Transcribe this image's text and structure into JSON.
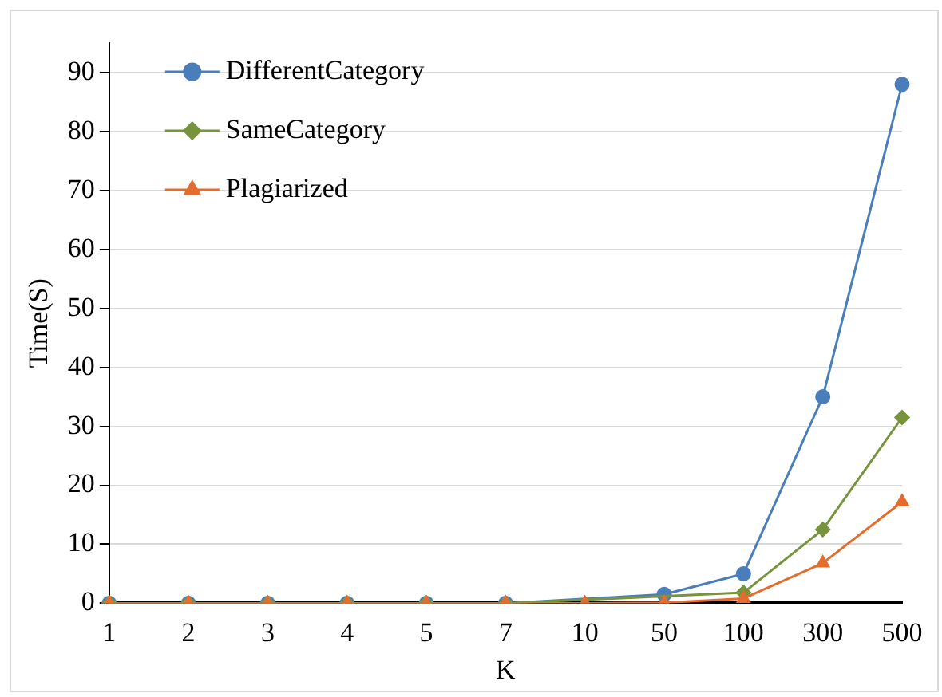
{
  "chart_data": {
    "type": "line",
    "xlabel": "K",
    "ylabel": "Time(S)",
    "categories": [
      "1",
      "2",
      "3",
      "4",
      "5",
      "7",
      "10",
      "50",
      "100",
      "300",
      "500"
    ],
    "series": [
      {
        "name": "DifferentCategory",
        "color": "#4a7ebb",
        "marker": "circle",
        "values": [
          0,
          0,
          0,
          0,
          0,
          0,
          null,
          1.5,
          5,
          35,
          88
        ]
      },
      {
        "name": "SameCategory",
        "color": "#77933c",
        "marker": "diamond",
        "values": [
          0,
          0,
          0,
          0,
          0,
          0,
          null,
          null,
          1.8,
          12.5,
          31.5
        ]
      },
      {
        "name": "Plagiarized",
        "color": "#e46c2c",
        "marker": "triangle",
        "values": [
          0,
          0,
          0,
          0,
          0,
          0,
          0,
          0.1,
          0.8,
          6.8,
          17.2
        ]
      }
    ],
    "ylim": [
      0,
      95
    ],
    "yticks": [
      0,
      10,
      20,
      30,
      40,
      50,
      60,
      70,
      80,
      90
    ],
    "grid": "y",
    "legend": "top left",
    "line_style": "solid"
  }
}
